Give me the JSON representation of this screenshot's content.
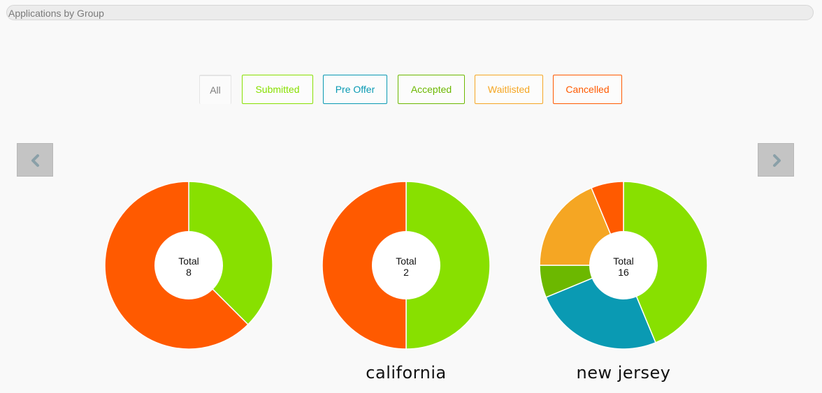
{
  "header": {
    "title": "Applications by Group"
  },
  "filters": [
    {
      "key": "all",
      "label": "All",
      "color": "#7d7d7d"
    },
    {
      "key": "submitted",
      "label": "Submitted",
      "color": "#88e000"
    },
    {
      "key": "pre_offer",
      "label": "Pre Offer",
      "color": "#0a9ab3"
    },
    {
      "key": "accepted",
      "label": "Accepted",
      "color": "#6cb800"
    },
    {
      "key": "waitlisted",
      "label": "Waitlisted",
      "color": "#f5a623"
    },
    {
      "key": "cancelled",
      "label": "Cancelled",
      "color": "#ff5a00"
    }
  ],
  "navigation": {
    "prev_icon": "chevron-left-icon",
    "next_icon": "chevron-right-icon"
  },
  "chart_data": [
    {
      "type": "pie",
      "group": "",
      "total_label": "Total",
      "total": 8,
      "slices": [
        {
          "status": "Submitted",
          "value": 3,
          "color": "#88e000"
        },
        {
          "status": "Cancelled",
          "value": 5,
          "color": "#ff5a00"
        }
      ]
    },
    {
      "type": "pie",
      "group": "california",
      "total_label": "Total",
      "total": 2,
      "slices": [
        {
          "status": "Submitted",
          "value": 1,
          "color": "#88e000"
        },
        {
          "status": "Cancelled",
          "value": 1,
          "color": "#ff5a00"
        }
      ]
    },
    {
      "type": "pie",
      "group": "new jersey",
      "total_label": "Total",
      "total": 16,
      "slices": [
        {
          "status": "Submitted",
          "value": 7,
          "color": "#88e000"
        },
        {
          "status": "Pre Offer",
          "value": 4,
          "color": "#0a9ab3"
        },
        {
          "status": "Accepted",
          "value": 1,
          "color": "#6cb800"
        },
        {
          "status": "Waitlisted",
          "value": 3,
          "color": "#f5a623"
        },
        {
          "status": "Cancelled",
          "value": 1,
          "color": "#ff5a00"
        }
      ]
    }
  ]
}
